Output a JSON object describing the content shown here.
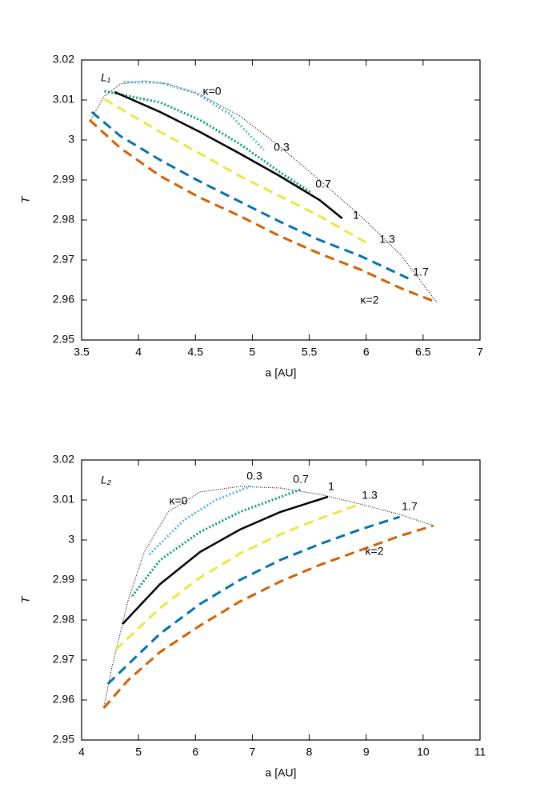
{
  "chart_data": [
    {
      "type": "line",
      "panel_label": "L₁",
      "xlabel": "a [AU]",
      "ylabel": "T",
      "xlim": [
        3.5,
        7
      ],
      "xticks": [
        3.5,
        4,
        4.5,
        5,
        5.5,
        6,
        6.5,
        7
      ],
      "ylim": [
        2.95,
        3.02
      ],
      "yticks": [
        2.95,
        2.96,
        2.97,
        2.98,
        2.99,
        3,
        3.01,
        3.02
      ],
      "annotations": [
        "κ=0",
        "0.3",
        "0.7",
        "1",
        "1.3",
        "1.7",
        "κ=2"
      ],
      "series": [
        {
          "color": "#000000",
          "dash": "thin-dotted",
          "x": [
            3.58,
            3.7,
            3.84,
            4.05,
            4.26,
            4.54,
            4.89,
            5.24,
            5.59,
            5.95,
            6.3,
            6.62
          ],
          "values": [
            3.005,
            3.011,
            3.014,
            3.0148,
            3.014,
            3.0114,
            3.006,
            2.9984,
            2.99,
            2.981,
            2.9714,
            2.9594
          ]
        },
        {
          "color": "#56b4e9",
          "dash": "dotted",
          "x": [
            3.87,
            4.2,
            4.5,
            4.8,
            5.1
          ],
          "values": [
            3.0145,
            3.0143,
            3.0118,
            3.0065,
            2.9975
          ]
        },
        {
          "color": "#009e73",
          "dash": "dotted",
          "x": [
            3.7,
            4.19,
            4.54,
            4.89,
            5.24,
            5.51
          ],
          "values": [
            3.0122,
            3.0094,
            3.005,
            2.999,
            2.992,
            2.987
          ]
        },
        {
          "color": "#000000",
          "dash": "solid",
          "x": [
            3.79,
            4.19,
            4.54,
            4.89,
            5.24,
            5.59,
            5.79
          ],
          "values": [
            3.012,
            3.007,
            3.002,
            2.9966,
            2.991,
            2.985,
            2.9804
          ]
        },
        {
          "color": "#f0e442",
          "dash": "dashed",
          "x": [
            3.7,
            4.19,
            4.54,
            4.89,
            5.24,
            5.59,
            6.02
          ],
          "values": [
            3.0102,
            3.002,
            2.9966,
            2.991,
            2.986,
            2.981,
            2.974
          ]
        },
        {
          "color": "#0072b2",
          "dash": "dashed",
          "x": [
            3.59,
            3.84,
            4.19,
            4.54,
            4.89,
            5.24,
            5.59,
            5.95,
            6.37
          ],
          "values": [
            3.007,
            3.001,
            2.995,
            2.9896,
            2.9846,
            2.9796,
            2.975,
            2.971,
            2.9654
          ]
        },
        {
          "color": "#d55e00",
          "dash": "dashed",
          "x": [
            3.57,
            3.84,
            4.19,
            4.54,
            4.89,
            5.24,
            5.59,
            5.95,
            6.3,
            6.62
          ],
          "values": [
            3.005,
            2.998,
            2.991,
            2.9856,
            2.981,
            2.976,
            2.9716,
            2.9676,
            2.963,
            2.9594
          ]
        }
      ]
    },
    {
      "type": "line",
      "panel_label": "L₂",
      "xlabel": "a [AU]",
      "ylabel": "T",
      "xlim": [
        4,
        11
      ],
      "xticks": [
        4,
        5,
        6,
        7,
        8,
        9,
        10,
        11
      ],
      "ylim": [
        2.95,
        3.02
      ],
      "yticks": [
        2.95,
        2.96,
        2.97,
        2.98,
        2.99,
        3,
        3.01,
        3.02
      ],
      "annotations": [
        "κ=0",
        "0.3",
        "0.7",
        "1",
        "1.3",
        "1.7",
        "κ=2"
      ],
      "series": [
        {
          "color": "#000000",
          "dash": "thin-dotted",
          "x": [
            4.39,
            4.53,
            4.82,
            5.1,
            5.52,
            6.08,
            6.78,
            7.49,
            8.19,
            8.89,
            9.59,
            10.18
          ],
          "values": [
            2.958,
            2.968,
            2.985,
            2.997,
            3.007,
            3.012,
            3.0134,
            3.013,
            3.0114,
            3.009,
            3.0064,
            3.0036
          ]
        },
        {
          "color": "#56b4e9",
          "dash": "dotted",
          "x": [
            5.19,
            5.8,
            6.36,
            6.99
          ],
          "values": [
            2.9964,
            3.005,
            3.01,
            3.0136
          ]
        },
        {
          "color": "#009e73",
          "dash": "dotted",
          "x": [
            4.89,
            5.38,
            6.08,
            6.78,
            7.35,
            7.84
          ],
          "values": [
            2.986,
            2.995,
            3.002,
            3.007,
            3.01,
            3.0126
          ]
        },
        {
          "color": "#000000",
          "dash": "solid",
          "x": [
            4.72,
            5.38,
            6.08,
            6.78,
            7.49,
            8.33
          ],
          "values": [
            2.979,
            2.989,
            2.997,
            3.0026,
            3.007,
            3.0108
          ]
        },
        {
          "color": "#f0e442",
          "dash": "dashed",
          "x": [
            4.6,
            5.38,
            6.08,
            6.78,
            7.49,
            8.19,
            8.86
          ],
          "values": [
            2.9726,
            2.983,
            2.9906,
            2.9966,
            3.0014,
            3.0054,
            3.0088
          ]
        },
        {
          "color": "#0072b2",
          "dash": "dashed",
          "x": [
            4.46,
            5.38,
            6.08,
            6.78,
            7.49,
            8.19,
            8.89,
            9.59
          ],
          "values": [
            2.964,
            2.9766,
            2.984,
            2.99,
            2.995,
            2.999,
            3.0026,
            3.0058
          ]
        },
        {
          "color": "#d55e00",
          "dash": "dashed",
          "x": [
            4.39,
            4.82,
            5.38,
            6.08,
            6.78,
            7.49,
            8.19,
            8.89,
            9.59,
            10.18
          ],
          "values": [
            2.958,
            2.965,
            2.972,
            2.9786,
            2.9846,
            2.9896,
            2.9938,
            2.9974,
            3.001,
            3.0036
          ]
        }
      ]
    }
  ]
}
